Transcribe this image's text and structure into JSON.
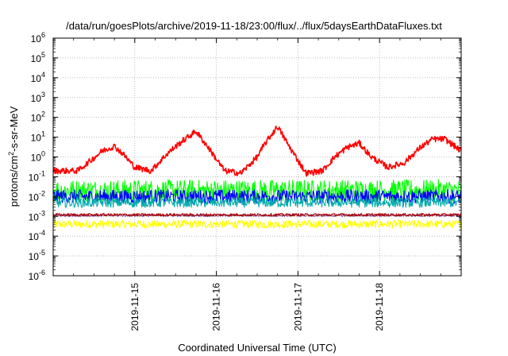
{
  "chart_data": {
    "type": "line",
    "title": "/data/run/goesPlots/archive/2019-11-18/23:00/flux/../flux/5daysEarthDataFluxes.txt",
    "xlabel": "Coordinated Universal Time (UTC)",
    "ylabel": {
      "base": "protons/cm",
      "sup": "2",
      "rest": "-s-sr-MeV"
    },
    "y_scale": "log",
    "ylim_exp": [
      -6,
      6
    ],
    "y_ticks": [
      {
        "mant": "10",
        "exp": "-6"
      },
      {
        "mant": "10",
        "exp": "-5"
      },
      {
        "mant": "10",
        "exp": "-4"
      },
      {
        "mant": "10",
        "exp": "-3"
      },
      {
        "mant": "10",
        "exp": "-2"
      },
      {
        "mant": "10",
        "exp": "-1"
      },
      {
        "mant": "10",
        "exp": "0"
      },
      {
        "mant": "10",
        "exp": "1"
      },
      {
        "mant": "10",
        "exp": "2"
      },
      {
        "mant": "10",
        "exp": "3"
      },
      {
        "mant": "10",
        "exp": "4"
      },
      {
        "mant": "10",
        "exp": "5"
      },
      {
        "mant": "10",
        "exp": "6"
      }
    ],
    "x_unit": "day",
    "x_range": [
      "2019-11-14T00:00",
      "2019-11-19T00:00"
    ],
    "x_ticks": [
      "2019-11-15",
      "2019-11-16",
      "2019-11-17",
      "2019-11-18"
    ],
    "grid": true,
    "series": [
      {
        "color": "#ff0000",
        "center_day": [
          0.0,
          0.3,
          0.5,
          0.6,
          0.75,
          0.85,
          1.0,
          1.2,
          1.4,
          1.55,
          1.75,
          1.9,
          2.1,
          2.3,
          2.5,
          2.6,
          2.75,
          2.9,
          3.1,
          3.3,
          3.45,
          3.6,
          3.75,
          3.9,
          4.1,
          4.3,
          4.5,
          4.65,
          4.8,
          5.0
        ],
        "center_value": [
          0.2,
          0.2,
          0.9,
          2.0,
          3.5,
          1.5,
          0.3,
          0.2,
          1.5,
          5.0,
          20.0,
          3.0,
          0.2,
          0.15,
          1.0,
          5.0,
          35.0,
          3.0,
          0.15,
          0.2,
          1.0,
          3.0,
          5.0,
          1.0,
          0.3,
          0.5,
          3.0,
          8.0,
          8.0,
          2.0
        ],
        "noise_decades": 0.15
      },
      {
        "color": "#00ff00",
        "center_day": [
          0.0,
          5.0
        ],
        "center_value": [
          0.02,
          0.02
        ],
        "noise_decades": 0.55
      },
      {
        "color": "#0000ff",
        "center_day": [
          0.0,
          5.0
        ],
        "center_value": [
          0.01,
          0.01
        ],
        "noise_decades": 0.35
      },
      {
        "color": "#00aaaa",
        "center_day": [
          0.0,
          5.0
        ],
        "center_value": [
          0.005,
          0.005
        ],
        "noise_decades": 0.25
      },
      {
        "color": "#ffff00",
        "center_day": [
          0.0,
          5.0
        ],
        "center_value": [
          0.0004,
          0.0004
        ],
        "noise_decades": 0.2
      },
      {
        "color": "#aa0000",
        "center_day": [
          0.0,
          5.0
        ],
        "center_value": [
          0.0012,
          0.0012
        ],
        "noise_decades": 0.07
      },
      {
        "color": "#884488",
        "center_day": [
          0.0,
          5.0
        ],
        "center_value": [
          0.0011,
          0.0011
        ],
        "noise_decades": 0.05
      }
    ]
  }
}
